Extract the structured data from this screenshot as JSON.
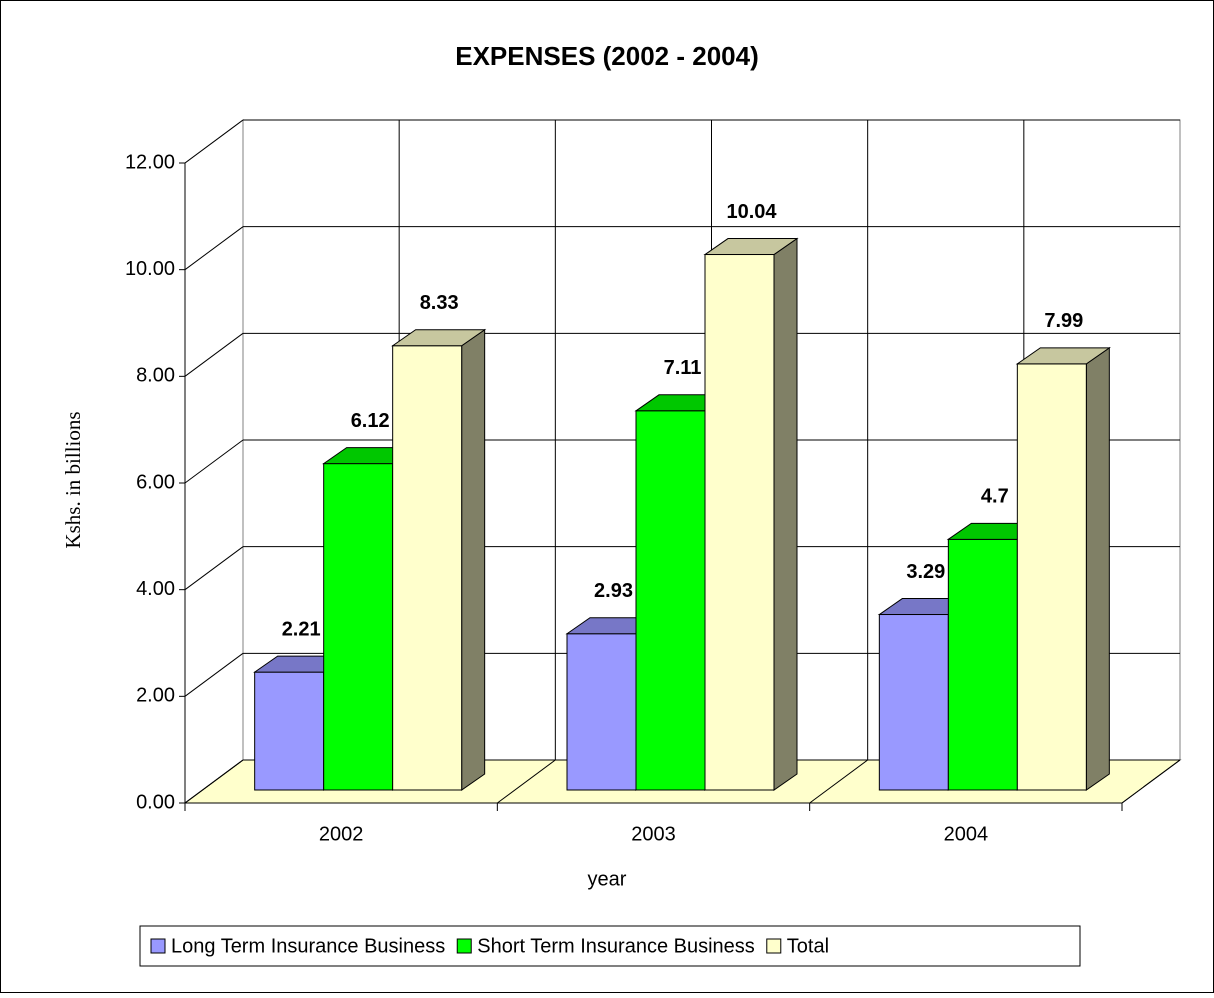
{
  "chart_data": {
    "type": "bar3d",
    "title": "EXPENSES (2002 - 2004)",
    "x_label": "year",
    "y_label": "Kshs. in billions",
    "categories": [
      "2002",
      "2003",
      "2004"
    ],
    "series": [
      {
        "name": "Long Term Insurance Business",
        "color": "#9999ff",
        "values": [
          2.21,
          2.93,
          3.29
        ]
      },
      {
        "name": "Short Term Insurance Business",
        "color": "#00ff00",
        "values": [
          6.12,
          7.11,
          4.7
        ]
      },
      {
        "name": "Total",
        "color": "#ffffcc",
        "values": [
          8.33,
          10.04,
          7.99
        ]
      }
    ],
    "ylim": [
      0,
      12
    ],
    "yticks": [
      {
        "value": 0,
        "label": "0.00"
      },
      {
        "value": 2,
        "label": "2.00"
      },
      {
        "value": 4,
        "label": "4.00"
      },
      {
        "value": 6,
        "label": "6.00"
      },
      {
        "value": 8,
        "label": "8.00"
      },
      {
        "value": 10,
        "label": "10.00"
      },
      {
        "value": 12,
        "label": "12.00"
      }
    ],
    "grid": true,
    "legend": "bottom"
  }
}
